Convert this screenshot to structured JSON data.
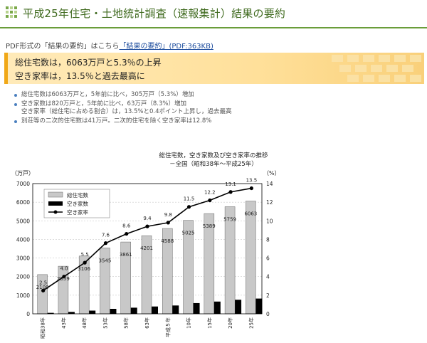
{
  "page": {
    "title": "平成25年住宅・土地統計調査（速報集計）結果の要約"
  },
  "pdf_link": {
    "prefix": "PDF形式の「結果の要約」はこちら",
    "link_text": "「結果の要約」(PDF:363KB)"
  },
  "highlight": {
    "line1": "総住宅数は，6063万戸と5.3％の上昇",
    "line2": "空き家率は，13.5％と過去最高に"
  },
  "bullets": [
    "総住宅数は6063万戸と，5年前に比べ，305万戸（5.3%）増加",
    "空き家数は820万戸と，5年前に比べ，63万戸（8.3%）増加",
    "空き家率（総住宅に占める割合）は，13.5%と0.4ポイント上昇し，過去最高",
    "別荘等の二次的住宅数は41万戸。二次的住宅を除く空き家率は12.8%"
  ],
  "chart_title": {
    "line1": "総住宅数，空き家数及び空き家率の推移",
    "line2": "－全国（昭和38年～平成25年）"
  },
  "chart_data": {
    "type": "bar",
    "categories": [
      "昭和38年",
      "43年",
      "48年",
      "53年",
      "58年",
      "63年",
      "平成５年",
      "10年",
      "15年",
      "20年",
      "25年"
    ],
    "left_axis_unit": "（万戸）",
    "right_axis_unit": "（%）",
    "ylim_left": [
      0,
      7000
    ],
    "ylim_right": [
      0,
      14
    ],
    "left_ticks": [
      "0",
      "1000",
      "2000",
      "3000",
      "4000",
      "5000",
      "6000",
      "7000"
    ],
    "right_ticks": [
      "0",
      "2",
      "4",
      "6",
      "8",
      "10",
      "12",
      "14"
    ],
    "legend": {
      "total": "総住宅数",
      "vacant": "空き家数",
      "rate": "空き家率"
    },
    "series": [
      {
        "name": "総住宅数",
        "kind": "bar",
        "color": "#c8c8c8",
        "values": [
          2109,
          2559,
          3106,
          3545,
          3861,
          4201,
          4588,
          5025,
          5389,
          5759,
          6063
        ]
      },
      {
        "name": "空き家数",
        "kind": "bar",
        "color": "#000000",
        "values": [
          52,
          103,
          172,
          268,
          330,
          394,
          448,
          576,
          659,
          757,
          820
        ]
      },
      {
        "name": "空き家率",
        "kind": "line",
        "color": "#000000",
        "values": [
          2.5,
          4.0,
          5.5,
          7.6,
          8.6,
          9.4,
          9.8,
          11.5,
          12.2,
          13.1,
          13.5
        ]
      }
    ],
    "rate_labels": [
      "2.5",
      "4.0",
      "5.5",
      "7.6",
      "8.6",
      "9.4",
      "9.8",
      "11.5",
      "12.2",
      "13.1",
      "13.5"
    ],
    "total_labels": [
      "2109",
      "2559",
      "3106",
      "3545",
      "3861",
      "4201",
      "4588",
      "5025",
      "5389",
      "5759",
      "6063"
    ]
  }
}
